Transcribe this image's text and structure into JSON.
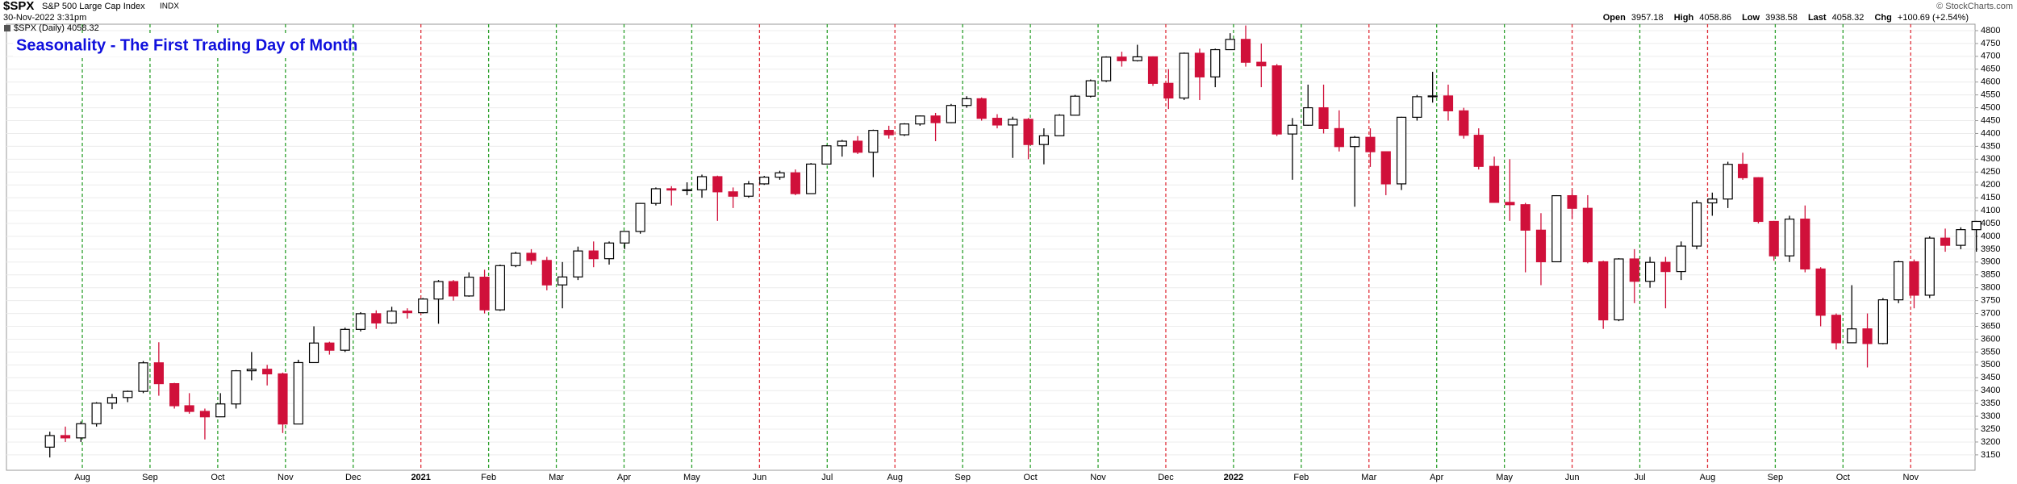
{
  "header": {
    "symbol": "$SPX",
    "name": "S&P 500 Large Cap Index",
    "exchange": "INDX",
    "timestamp": "30-Nov-2022 3:31pm",
    "legend": "$SPX (Daily) 4058.32",
    "copyright": "© StockCharts.com",
    "quote": [
      {
        "label": "Open",
        "value": "3957.18"
      },
      {
        "label": "High",
        "value": "4058.86"
      },
      {
        "label": "Low",
        "value": "3938.58"
      },
      {
        "label": "Last",
        "value": "4058.32"
      },
      {
        "label": "Chg",
        "value": "+100.69 (+2.54%)"
      }
    ]
  },
  "chart_data": {
    "type": "candlestick",
    "title": "Seasonality - The First Trading Day of Month",
    "up_color": "#000000",
    "down_color": "#d0103a",
    "grid": true,
    "xlim": [
      -1.12,
      27.95
    ],
    "ylim": [
      3090,
      4825
    ],
    "yticks": [
      3150,
      3200,
      3250,
      3300,
      3350,
      3400,
      3450,
      3500,
      3550,
      3600,
      3650,
      3700,
      3750,
      3800,
      3850,
      3900,
      3950,
      4000,
      4050,
      4100,
      4150,
      4200,
      4250,
      4300,
      4350,
      4400,
      4450,
      4500,
      4550,
      4600,
      4650,
      4700,
      4750,
      4800
    ],
    "xticks": [
      {
        "value": 0,
        "label": "Aug"
      },
      {
        "value": 1,
        "label": "Sep"
      },
      {
        "value": 2,
        "label": "Oct"
      },
      {
        "value": 3,
        "label": "Nov"
      },
      {
        "value": 4,
        "label": "Dec"
      },
      {
        "value": 5,
        "label": "2021"
      },
      {
        "value": 6,
        "label": "Feb"
      },
      {
        "value": 7,
        "label": "Mar"
      },
      {
        "value": 8,
        "label": "Apr"
      },
      {
        "value": 9,
        "label": "May"
      },
      {
        "value": 10,
        "label": "Jun"
      },
      {
        "value": 11,
        "label": "Jul"
      },
      {
        "value": 12,
        "label": "Aug"
      },
      {
        "value": 13,
        "label": "Sep"
      },
      {
        "value": 14,
        "label": "Oct"
      },
      {
        "value": 15,
        "label": "Nov"
      },
      {
        "value": 16,
        "label": "Dec"
      },
      {
        "value": 17,
        "label": "2022"
      },
      {
        "value": 18,
        "label": "Feb"
      },
      {
        "value": 19,
        "label": "Mar"
      },
      {
        "value": 20,
        "label": "Apr"
      },
      {
        "value": 21,
        "label": "May"
      },
      {
        "value": 22,
        "label": "Jun"
      },
      {
        "value": 23,
        "label": "Jul"
      },
      {
        "value": 24,
        "label": "Aug"
      },
      {
        "value": 25,
        "label": "Sep"
      },
      {
        "value": 26,
        "label": "Oct"
      },
      {
        "value": 27,
        "label": "Nov"
      }
    ],
    "xtick_line_colors": [
      "#2ca02c",
      "#2ca02c",
      "#2ca02c",
      "#2ca02c",
      "#2ca02c",
      "#e0303a",
      "#2ca02c",
      "#2ca02c",
      "#2ca02c",
      "#2ca02c",
      "#e0303a",
      "#2ca02c",
      "#e0303a",
      "#2ca02c",
      "#2ca02c",
      "#2ca02c",
      "#e0303a",
      "#2ca02c",
      "#2ca02c",
      "#e0303a",
      "#2ca02c",
      "#2ca02c",
      "#e0303a",
      "#2ca02c",
      "#e0303a",
      "#2ca02c",
      "#2ca02c",
      "#e0303a"
    ],
    "x": [
      -0.48,
      -0.25,
      -0.02,
      0.21,
      0.44,
      0.67,
      0.9,
      1.13,
      1.36,
      1.58,
      1.81,
      2.04,
      2.27,
      2.5,
      2.73,
      2.96,
      3.19,
      3.42,
      3.65,
      3.88,
      4.11,
      4.34,
      4.57,
      4.8,
      5.03,
      5.26,
      5.48,
      5.71,
      5.94,
      6.17,
      6.4,
      6.63,
      6.86,
      7.09,
      7.32,
      7.55,
      7.78,
      8.01,
      8.24,
      8.47,
      8.7,
      8.93,
      9.15,
      9.38,
      9.61,
      9.84,
      10.07,
      10.3,
      10.53,
      10.76,
      10.99,
      11.22,
      11.45,
      11.68,
      11.91,
      12.14,
      12.37,
      12.6,
      12.83,
      13.06,
      13.28,
      13.51,
      13.74,
      13.97,
      14.2,
      14.43,
      14.66,
      14.89,
      15.12,
      15.35,
      15.58,
      15.81,
      16.04,
      16.27,
      16.5,
      16.73,
      16.95,
      17.18,
      17.41,
      17.64,
      17.87,
      18.1,
      18.33,
      18.56,
      18.79,
      19.02,
      19.25,
      19.48,
      19.71,
      19.94,
      20.17,
      20.4,
      20.62,
      20.85,
      21.08,
      21.31,
      21.54,
      21.77,
      22.0,
      22.23,
      22.46,
      22.69,
      22.92,
      23.15,
      23.38,
      23.61,
      23.84,
      24.07,
      24.3,
      24.52,
      24.75,
      24.98,
      25.21,
      25.44,
      25.67,
      25.9,
      26.13,
      26.36,
      26.59,
      26.82,
      27.05,
      27.28,
      27.51,
      27.74,
      27.97
    ],
    "open": [
      3180,
      3225,
      3216,
      3271,
      3351,
      3373,
      3397,
      3508,
      3427,
      3341,
      3319,
      3298,
      3348,
      3477,
      3483,
      3465,
      3270,
      3509,
      3585,
      3557,
      3638,
      3699,
      3663,
      3709,
      3703,
      3756,
      3824,
      3768,
      3841,
      3714,
      3886,
      3934,
      3906,
      3811,
      3842,
      3943,
      3913,
      3974,
      4019,
      4128,
      4185,
      4180,
      4181,
      4232,
      4173,
      4156,
      4204,
      4230,
      4247,
      4166,
      4281,
      4352,
      4370,
      4327,
      4412,
      4395,
      4437,
      4468,
      4442,
      4509,
      4535,
      4459,
      4433,
      4455,
      4357,
      4391,
      4471,
      4545,
      4605,
      4697,
      4683,
      4698,
      4595,
      4538,
      4712,
      4620,
      4726,
      4766,
      4677,
      4663,
      4398,
      4432,
      4500,
      4419,
      4349,
      4385,
      4329,
      4204,
      4463,
      4543,
      4546,
      4488,
      4393,
      4272,
      4132,
      4123,
      4024,
      3901,
      4158,
      4109,
      3901,
      3675,
      3912,
      3825,
      3899,
      3863,
      3962,
      4130,
      4145,
      4280,
      4228,
      4058,
      3924,
      4067,
      3873,
      3693,
      3586,
      3640,
      3583,
      3753,
      3901,
      3771,
      3993,
      3965,
      4026
    ],
    "high": [
      3240,
      3260,
      3280,
      3355,
      3387,
      3400,
      3515,
      3588,
      3430,
      3390,
      3330,
      3390,
      3480,
      3550,
      3500,
      3470,
      3520,
      3650,
      3590,
      3645,
      3705,
      3712,
      3726,
      3720,
      3760,
      3830,
      3830,
      3860,
      3870,
      3890,
      3940,
      3950,
      3920,
      3900,
      3960,
      3980,
      3980,
      4020,
      4130,
      4190,
      4195,
      4210,
      4240,
      4236,
      4190,
      4215,
      4235,
      4255,
      4260,
      4285,
      4355,
      4375,
      4390,
      4415,
      4430,
      4440,
      4470,
      4480,
      4515,
      4545,
      4540,
      4475,
      4465,
      4460,
      4420,
      4475,
      4550,
      4610,
      4700,
      4718,
      4745,
      4700,
      4650,
      4715,
      4730,
      4730,
      4790,
      4820,
      4750,
      4670,
      4460,
      4590,
      4590,
      4490,
      4390,
      4420,
      4330,
      4465,
      4550,
      4640,
      4590,
      4500,
      4420,
      4310,
      4300,
      4130,
      4090,
      4160,
      4180,
      4160,
      3905,
      3915,
      3950,
      3920,
      3920,
      3980,
      4140,
      4170,
      4290,
      4325,
      4230,
      4060,
      4080,
      4120,
      3880,
      3700,
      3810,
      3700,
      3760,
      3905,
      3910,
      4000,
      4030,
      4035,
      4060
    ],
    "low": [
      3140,
      3200,
      3200,
      3260,
      3328,
      3355,
      3390,
      3380,
      3330,
      3310,
      3210,
      3300,
      3330,
      3440,
      3420,
      3235,
      3280,
      3510,
      3540,
      3550,
      3630,
      3640,
      3660,
      3680,
      3700,
      3660,
      3750,
      3765,
      3700,
      3710,
      3880,
      3890,
      3790,
      3720,
      3830,
      3880,
      3890,
      3950,
      4010,
      4120,
      4120,
      4160,
      4150,
      4060,
      4110,
      4150,
      4200,
      4220,
      4160,
      4165,
      4280,
      4310,
      4320,
      4230,
      4380,
      4390,
      4430,
      4370,
      4440,
      4500,
      4450,
      4420,
      4305,
      4300,
      4280,
      4390,
      4470,
      4540,
      4600,
      4660,
      4680,
      4585,
      4495,
      4530,
      4530,
      4580,
      4725,
      4660,
      4580,
      4390,
      4220,
      4430,
      4400,
      4330,
      4115,
      4270,
      4160,
      4180,
      4450,
      4520,
      4450,
      4380,
      4260,
      4130,
      4060,
      3860,
      3810,
      3900,
      4070,
      3895,
      3640,
      3670,
      3740,
      3800,
      3720,
      3830,
      3950,
      4080,
      4110,
      4220,
      4050,
      3905,
      3900,
      3860,
      3650,
      3560,
      3585,
      3490,
      3580,
      3740,
      3720,
      3760,
      3940,
      3950,
      3940
    ],
    "close": [
      3225,
      3216,
      3271,
      3351,
      3373,
      3397,
      3508,
      3427,
      3341,
      3319,
      3298,
      3348,
      3477,
      3483,
      3465,
      3270,
      3509,
      3585,
      3557,
      3638,
      3699,
      3663,
      3709,
      3703,
      3756,
      3824,
      3768,
      3841,
      3714,
      3886,
      3934,
      3906,
      3811,
      3842,
      3943,
      3913,
      3974,
      4019,
      4128,
      4185,
      4180,
      4181,
      4232,
      4173,
      4156,
      4204,
      4230,
      4247,
      4166,
      4281,
      4352,
      4370,
      4327,
      4412,
      4395,
      4437,
      4468,
      4442,
      4509,
      4535,
      4459,
      4433,
      4455,
      4357,
      4391,
      4471,
      4545,
      4605,
      4697,
      4683,
      4698,
      4595,
      4538,
      4712,
      4620,
      4726,
      4766,
      4677,
      4663,
      4398,
      4432,
      4500,
      4419,
      4349,
      4385,
      4329,
      4204,
      4463,
      4543,
      4546,
      4488,
      4393,
      4272,
      4132,
      4123,
      4024,
      3901,
      4158,
      4109,
      3901,
      3675,
      3912,
      3825,
      3899,
      3863,
      3962,
      4130,
      4145,
      4280,
      4228,
      4058,
      3924,
      4067,
      3873,
      3693,
      3586,
      3640,
      3583,
      3753,
      3901,
      3771,
      3993,
      3965,
      4026,
      4058
    ]
  }
}
